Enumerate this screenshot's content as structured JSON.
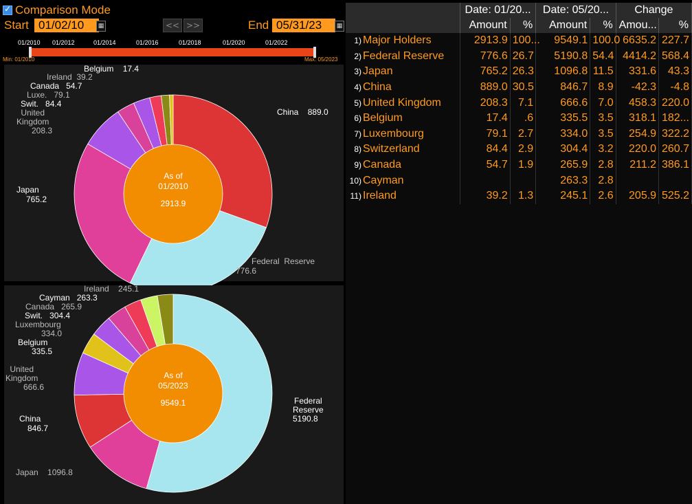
{
  "header": {
    "comparison_mode": "Comparison Mode",
    "start_label": "Start",
    "start_value": "01/02/10",
    "end_label": "End",
    "end_value": "05/31/23",
    "nav_prev": "<<",
    "nav_next": ">>",
    "calendar_icon": "calendar-icon"
  },
  "timeline": {
    "ticks": [
      "01/2010",
      "01/2012",
      "01/2014",
      "01/2016",
      "01/2018",
      "01/2020",
      "01/2022"
    ],
    "min": "Min: 01/2010",
    "max": "Max: 05/2023"
  },
  "chart_data": [
    {
      "type": "pie",
      "center": [
        "As of",
        "01/2010",
        "2913.9"
      ],
      "slices": [
        {
          "name": "China",
          "value": 889.0,
          "color": "#dd3535"
        },
        {
          "name": "Federal  Reserve",
          "value": 776.6,
          "color": "#a8e6ef"
        },
        {
          "name": "Japan",
          "value": 765.2,
          "color": "#e0409a"
        },
        {
          "name": "United Kingdom",
          "value": 208.3,
          "color": "#a855e8"
        },
        {
          "name": "Swit.",
          "value": 84.4,
          "color": "#d9429a"
        },
        {
          "name": "Luxe.",
          "value": 79.1,
          "color": "#a855e8"
        },
        {
          "name": "Canada",
          "value": 54.7,
          "color": "#ee3b57"
        },
        {
          "name": "Ireland",
          "value": 39.2,
          "color": "#8b8a16"
        },
        {
          "name": "Belgium",
          "value": 17.4,
          "color": "#e0c21a"
        }
      ]
    },
    {
      "type": "pie",
      "center": [
        "As of",
        "05/2023",
        "9549.1"
      ],
      "slices": [
        {
          "name": "Federal Reserve",
          "value": 5190.8,
          "color": "#a8e6ef"
        },
        {
          "name": "Japan",
          "value": 1096.8,
          "color": "#e0409a"
        },
        {
          "name": "China",
          "value": 846.7,
          "color": "#dd3535"
        },
        {
          "name": "United Kingdom",
          "value": 666.6,
          "color": "#a855e8"
        },
        {
          "name": "Belgium",
          "value": 335.5,
          "color": "#e0c21a"
        },
        {
          "name": "Luxembourg",
          "value": 334.0,
          "color": "#a855e8"
        },
        {
          "name": "Swit.",
          "value": 304.4,
          "color": "#d9429a"
        },
        {
          "name": "Canada",
          "value": 265.9,
          "color": "#ee3b57"
        },
        {
          "name": "Cayman",
          "value": 263.3,
          "color": "#ccf566"
        },
        {
          "name": "Ireland",
          "value": 245.1,
          "color": "#8b8a16"
        }
      ]
    }
  ],
  "labels1": [
    {
      "name": "China",
      "value": "889.0"
    },
    {
      "name": "Federal  Reserve",
      "value": "776.6"
    },
    {
      "name": "Japan",
      "value": "765.2"
    },
    {
      "name": "United\nKingdom",
      "value": "208.3"
    },
    {
      "name": "Swit.",
      "value": "84.4"
    },
    {
      "name": "Luxe.",
      "value": "79.1"
    },
    {
      "name": "Canada",
      "value": "54.7"
    },
    {
      "name": "Ireland",
      "value": "39.2"
    },
    {
      "name": "Belgium",
      "value": "17.4"
    }
  ],
  "labels2": [
    {
      "name": "Federal\nReserve",
      "value": "5190.8"
    },
    {
      "name": "Japan",
      "value": "1096.8"
    },
    {
      "name": "China",
      "value": "846.7"
    },
    {
      "name": "United\nKingdom",
      "value": "666.6"
    },
    {
      "name": "Belgium",
      "value": "335.5"
    },
    {
      "name": "Luxembourg",
      "value": "334.0"
    },
    {
      "name": "Swit.",
      "value": "304.4"
    },
    {
      "name": "Canada",
      "value": "265.9"
    },
    {
      "name": "Cayman",
      "value": "263.3"
    },
    {
      "name": "Ireland",
      "value": "245.1"
    }
  ],
  "table": {
    "group_headers": [
      "Date: 01/20...",
      "Date: 05/20...",
      "Change"
    ],
    "sub_headers": [
      "Amount",
      "%",
      "Amount",
      "%",
      "Amou...",
      "%"
    ],
    "rows": [
      {
        "idx": "1)",
        "name": "Major Holders",
        "cells": [
          "2913.9",
          "100...",
          "9549.1",
          "100.0",
          "6635.2",
          "227.7"
        ]
      },
      {
        "idx": "2)",
        "name": "Federal Reserve",
        "cells": [
          "776.6",
          "26.7",
          "5190.8",
          "54.4",
          "4414.2",
          "568.4"
        ]
      },
      {
        "idx": "3)",
        "name": "Japan",
        "cells": [
          "765.2",
          "26.3",
          "1096.8",
          "11.5",
          "331.6",
          "43.3"
        ]
      },
      {
        "idx": "4)",
        "name": "China",
        "cells": [
          "889.0",
          "30.5",
          "846.7",
          "8.9",
          "-42.3",
          "-4.8"
        ]
      },
      {
        "idx": "5)",
        "name": "United Kingdom",
        "cells": [
          "208.3",
          "7.1",
          "666.6",
          "7.0",
          "458.3",
          "220.0"
        ]
      },
      {
        "idx": "6)",
        "name": "Belgium",
        "cells": [
          "17.4",
          ".6",
          "335.5",
          "3.5",
          "318.1",
          "182..."
        ]
      },
      {
        "idx": "7)",
        "name": "Luxembourg",
        "cells": [
          "79.1",
          "2.7",
          "334.0",
          "3.5",
          "254.9",
          "322.2"
        ]
      },
      {
        "idx": "8)",
        "name": "Switzerland",
        "cells": [
          "84.4",
          "2.9",
          "304.4",
          "3.2",
          "220.0",
          "260.7"
        ]
      },
      {
        "idx": "9)",
        "name": "Canada",
        "cells": [
          "54.7",
          "1.9",
          "265.9",
          "2.8",
          "211.2",
          "386.1"
        ]
      },
      {
        "idx": "10)",
        "name": "Cayman",
        "cells": [
          "",
          "",
          "263.3",
          "2.8",
          "",
          ""
        ]
      },
      {
        "idx": "11)",
        "name": "Ireland",
        "cells": [
          "39.2",
          "1.3",
          "245.1",
          "2.6",
          "205.9",
          "525.2"
        ]
      }
    ]
  }
}
